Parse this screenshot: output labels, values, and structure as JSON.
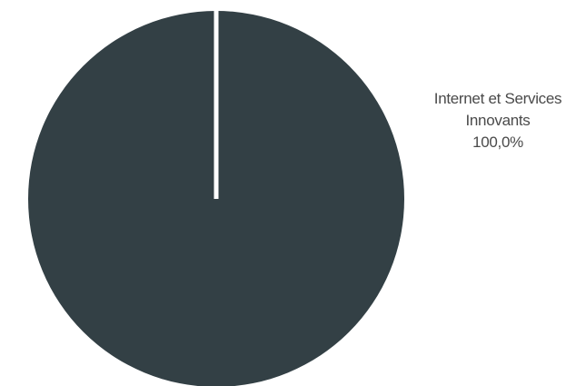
{
  "chart_data": {
    "type": "pie",
    "title": "",
    "slices": [
      {
        "label_lines": [
          "Internet et Services",
          "Innovants"
        ],
        "value": 100.0,
        "value_label": "100,0%",
        "color": "#334045"
      }
    ],
    "start_angle_deg": 0,
    "direction": "clockwise",
    "separator_color": "#ffffff",
    "legend": "none"
  }
}
